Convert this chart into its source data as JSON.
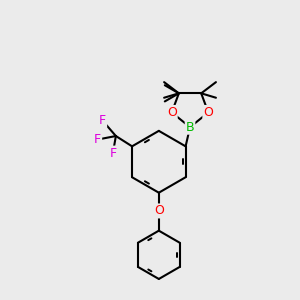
{
  "bg_color": "#ebebeb",
  "atom_colors": {
    "B": "#00bb00",
    "O": "#ff0000",
    "F": "#dd00dd",
    "C": "#000000"
  },
  "bond_color": "#000000",
  "bond_width": 1.5,
  "dbo": 0.055
}
